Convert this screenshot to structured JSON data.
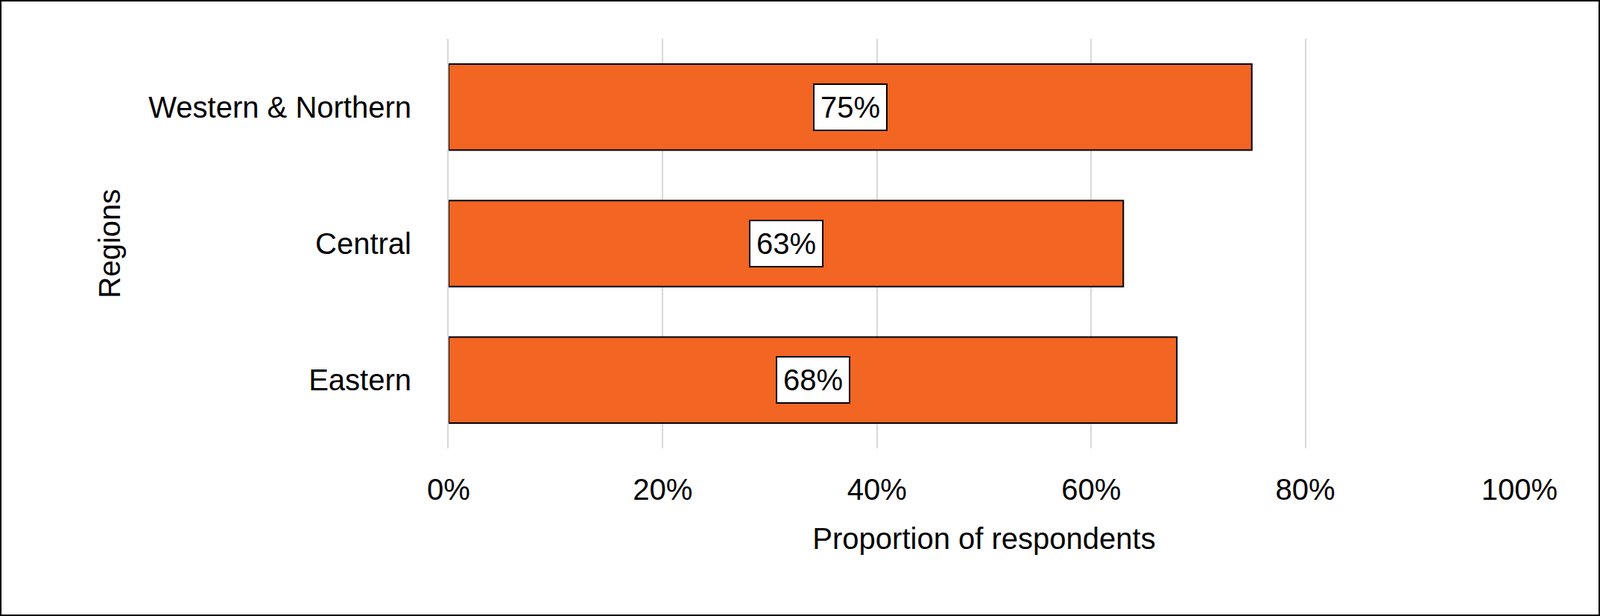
{
  "chart_data": {
    "type": "bar",
    "orientation": "horizontal",
    "categories": [
      "Western & Northern",
      "Central",
      "Eastern"
    ],
    "values": [
      75,
      63,
      68
    ],
    "value_labels": [
      "75%",
      "63%",
      "68%"
    ],
    "data_labels": true,
    "color": "#f26522",
    "x_label": "Proportion of respondents",
    "y_label": "Regions",
    "xlim": [
      0,
      100
    ],
    "xticks": [
      {
        "value": 0,
        "label": "0%"
      },
      {
        "value": 20,
        "label": "20%"
      },
      {
        "value": 40,
        "label": "40%"
      },
      {
        "value": 60,
        "label": "60%"
      },
      {
        "value": 80,
        "label": "80%"
      },
      {
        "value": 100,
        "label": "100%"
      }
    ],
    "grid": true
  }
}
